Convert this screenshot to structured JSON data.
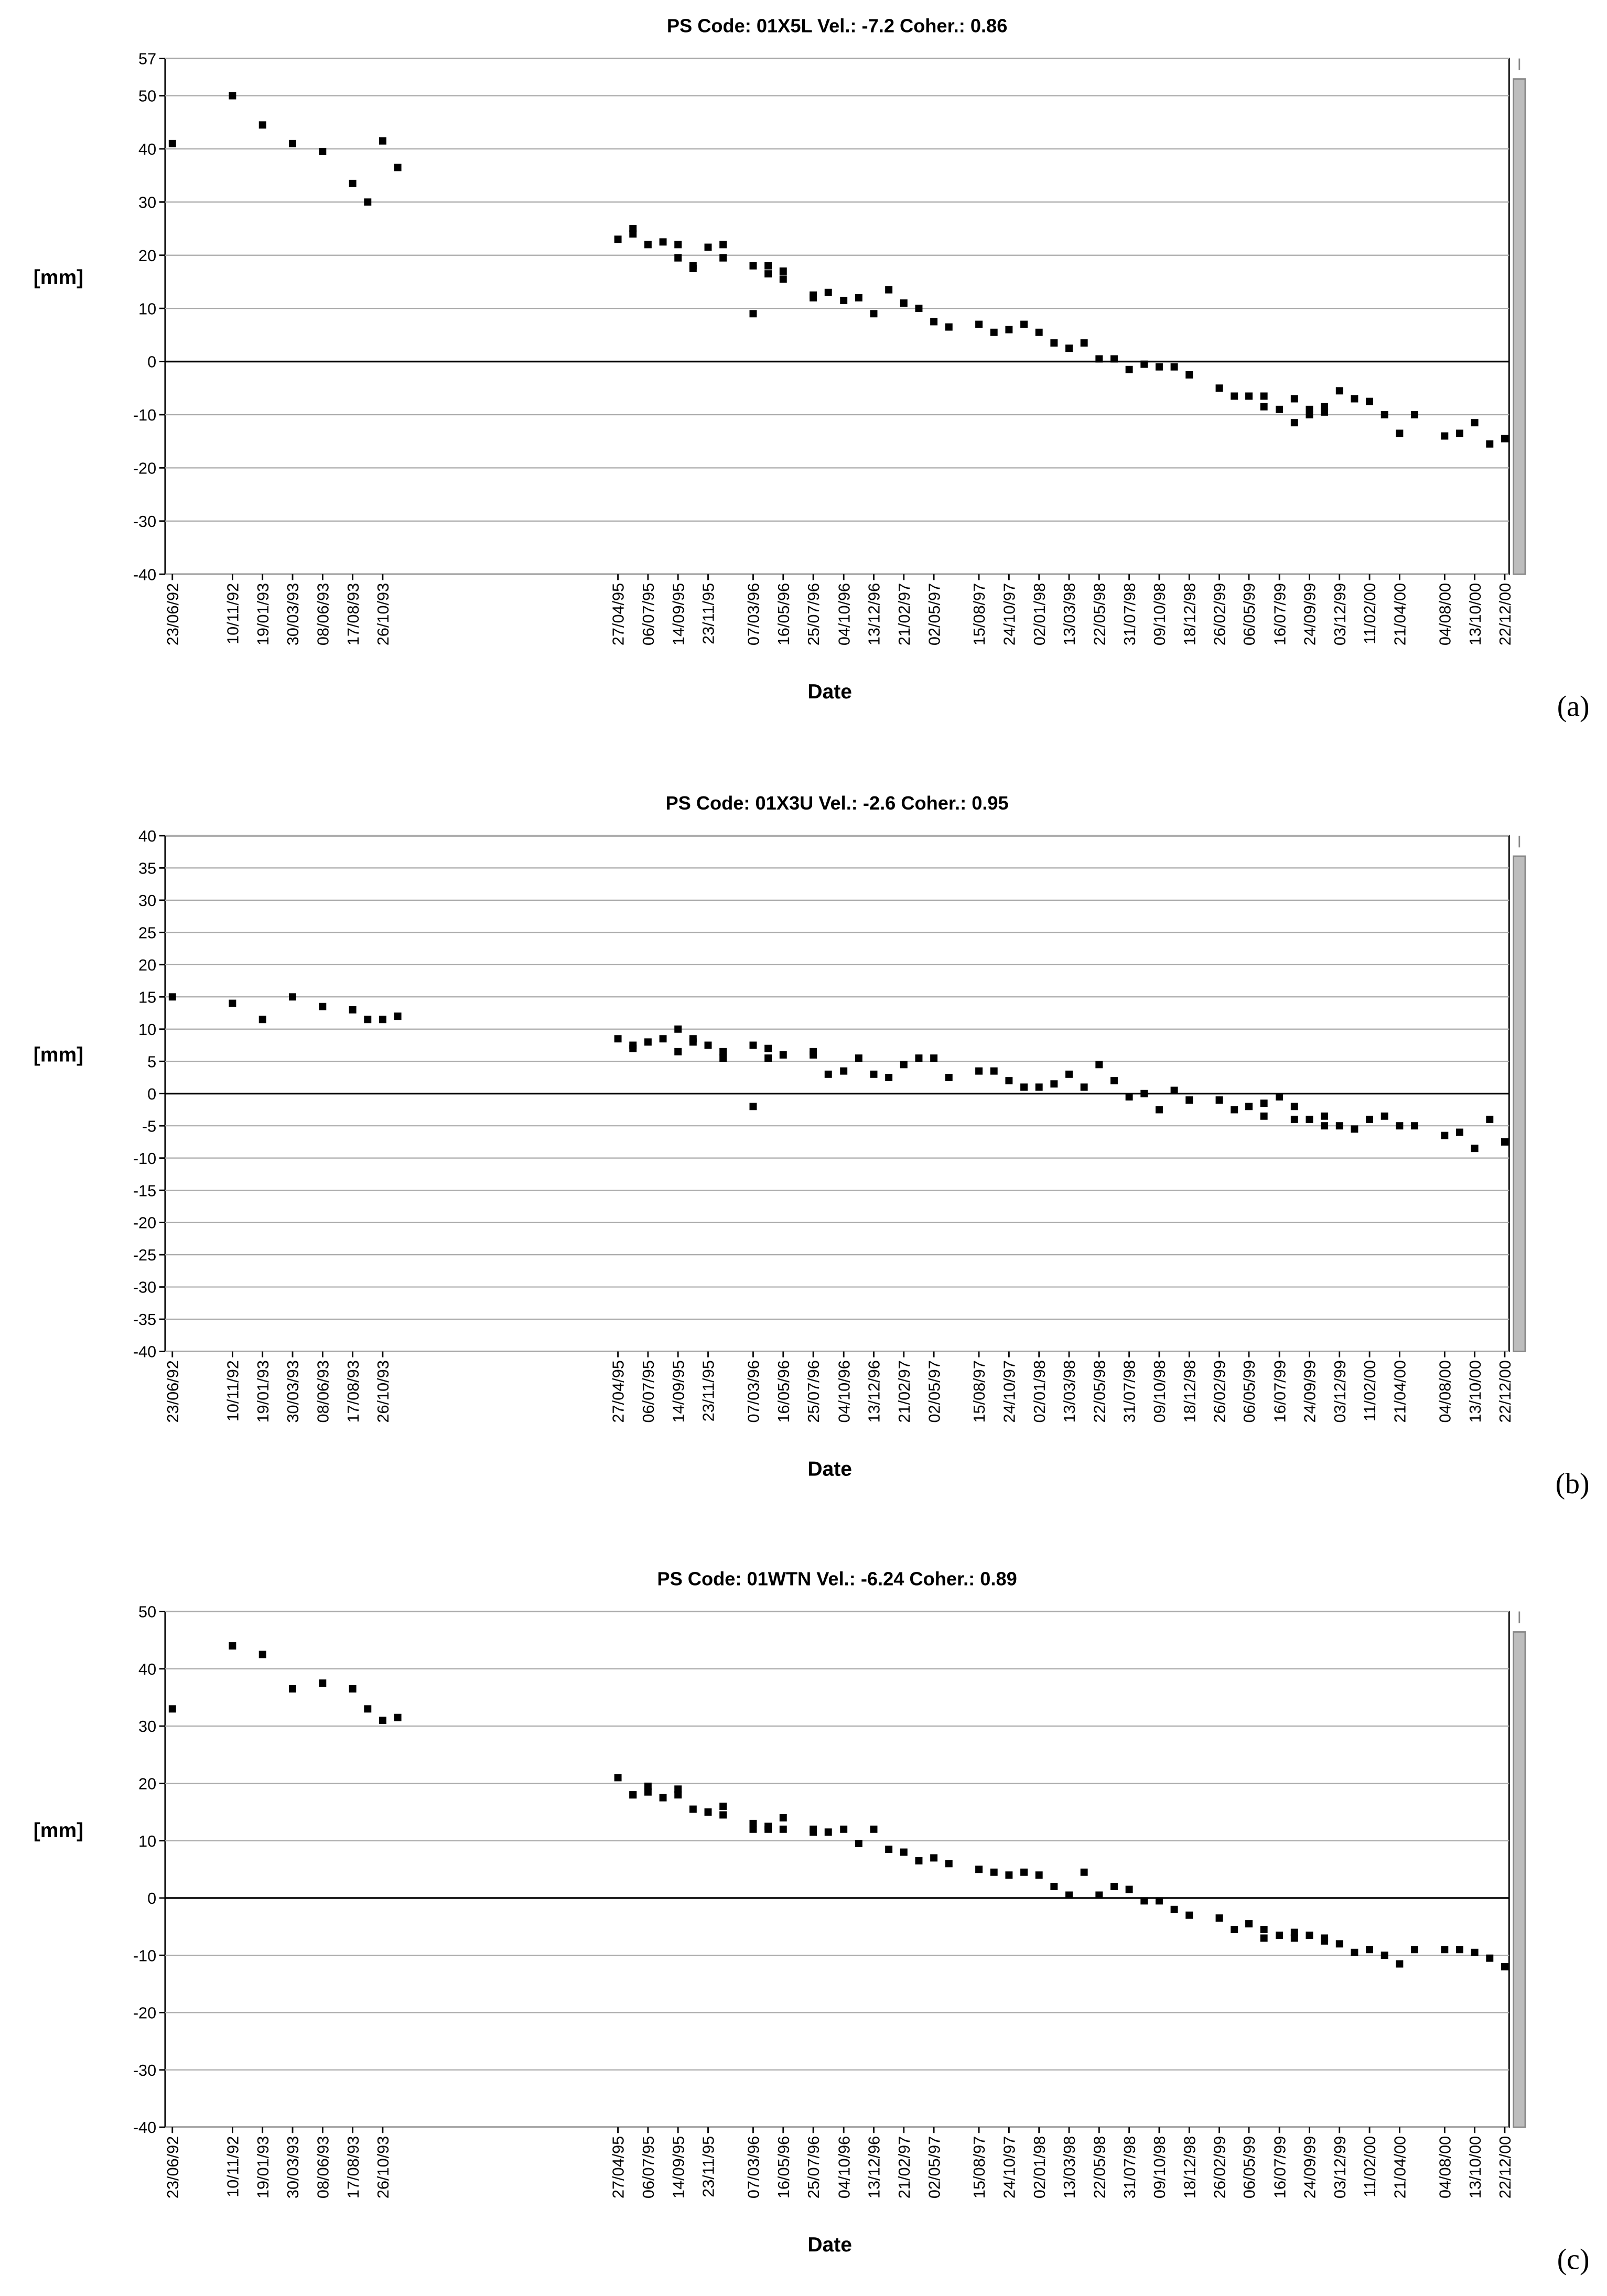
{
  "chart_data": [
    {
      "type": "scatter",
      "title": "PS Code: 01X5L   Vel.:  -7.2   Coher.: 0.86",
      "y_label": "[mm]",
      "x_label": "Date",
      "panel_label": "(a)",
      "grid": true,
      "ylim": [
        -40,
        57
      ],
      "yticks": [
        -40,
        -30,
        -20,
        -10,
        0,
        10,
        20,
        30,
        40,
        50,
        57
      ],
      "xlim": [
        "23/06/92",
        "22/12/00"
      ],
      "xticks": [
        "23/06/92",
        "10/11/92",
        "19/01/93",
        "30/03/93",
        "08/06/93",
        "17/08/93",
        "26/10/93",
        "27/04/95",
        "06/07/95",
        "14/09/95",
        "23/11/95",
        "07/03/96",
        "16/05/96",
        "25/07/96",
        "04/10/96",
        "13/12/96",
        "21/02/97",
        "02/05/97",
        "15/08/97",
        "24/10/97",
        "02/01/98",
        "13/03/98",
        "22/05/98",
        "31/07/98",
        "09/10/98",
        "18/12/98",
        "26/02/99",
        "06/05/99",
        "16/07/99",
        "24/09/99",
        "03/12/99",
        "11/02/00",
        "21/04/00",
        "04/08/00",
        "13/10/00",
        "22/12/00"
      ],
      "series": [
        {
          "color": "#000000",
          "x": [
            "23/06/92",
            "10/11/92",
            "19/01/93",
            "30/03/93",
            "08/06/93",
            "17/08/93",
            "21/09/93",
            "26/10/93",
            "30/11/93",
            "27/04/95",
            "01/06/95",
            "01/06/95",
            "06/07/95",
            "10/08/95",
            "14/09/95",
            "14/09/95",
            "19/10/95",
            "19/10/95",
            "23/11/95",
            "28/12/95",
            "28/12/95",
            "07/03/96",
            "07/03/96",
            "11/04/96",
            "11/04/96",
            "16/05/96",
            "16/05/96",
            "25/07/96",
            "25/07/96",
            "29/08/96",
            "04/10/96",
            "08/11/96",
            "13/12/96",
            "17/01/97",
            "21/02/97",
            "28/03/97",
            "02/05/97",
            "06/06/97",
            "15/08/97",
            "19/09/97",
            "24/10/97",
            "28/11/97",
            "02/01/98",
            "06/02/98",
            "13/03/98",
            "17/04/98",
            "22/05/98",
            "26/06/98",
            "31/07/98",
            "04/09/98",
            "09/10/98",
            "13/11/98",
            "18/12/98",
            "26/02/99",
            "02/04/99",
            "06/05/99",
            "10/06/99",
            "10/06/99",
            "16/07/99",
            "20/08/99",
            "20/08/99",
            "24/09/99",
            "24/09/99",
            "29/10/99",
            "29/10/99",
            "03/12/99",
            "07/01/00",
            "11/02/00",
            "17/03/00",
            "21/04/00",
            "26/05/00",
            "04/08/00",
            "08/09/00",
            "13/10/00",
            "17/11/00",
            "22/12/00"
          ],
          "values": [
            41,
            50,
            44.5,
            41,
            39.5,
            33.5,
            30,
            41.5,
            36.5,
            23,
            25,
            24,
            22,
            22.5,
            22,
            19.5,
            18,
            17.5,
            21.5,
            22,
            19.5,
            18,
            9,
            18,
            16.5,
            17,
            15.5,
            12.5,
            12,
            13,
            11.5,
            12,
            9,
            13.5,
            11,
            10,
            7.5,
            6.5,
            7,
            5.5,
            6,
            7,
            5.5,
            3.5,
            2.5,
            3.5,
            0.5,
            0.5,
            -1.5,
            -0.5,
            -1,
            -1,
            -2.5,
            -5,
            -6.5,
            -6.5,
            -6.5,
            -8.5,
            -9,
            -7,
            -11.5,
            -9,
            -10,
            -8.5,
            -9.5,
            -5.5,
            -7,
            -7.5,
            -10,
            -13.5,
            -10,
            -14,
            -13.5,
            -11.5,
            -15.5,
            -14.5
          ]
        }
      ]
    },
    {
      "type": "scatter",
      "title": "PS Code: 01X3U   Vel.:  -2.6   Coher.: 0.95",
      "y_label": "[mm]",
      "x_label": "Date",
      "panel_label": "(b)",
      "grid": true,
      "ylim": [
        -40,
        40
      ],
      "yticks": [
        -40,
        -35,
        -30,
        -25,
        -20,
        -15,
        -10,
        -5,
        0,
        5,
        10,
        15,
        20,
        25,
        30,
        35,
        40
      ],
      "xlim": [
        "23/06/92",
        "22/12/00"
      ],
      "xticks": [
        "23/06/92",
        "10/11/92",
        "19/01/93",
        "30/03/93",
        "08/06/93",
        "17/08/93",
        "26/10/93",
        "27/04/95",
        "06/07/95",
        "14/09/95",
        "23/11/95",
        "07/03/96",
        "16/05/96",
        "25/07/96",
        "04/10/96",
        "13/12/96",
        "21/02/97",
        "02/05/97",
        "15/08/97",
        "24/10/97",
        "02/01/98",
        "13/03/98",
        "22/05/98",
        "31/07/98",
        "09/10/98",
        "18/12/98",
        "26/02/99",
        "06/05/99",
        "16/07/99",
        "24/09/99",
        "03/12/99",
        "11/02/00",
        "21/04/00",
        "04/08/00",
        "13/10/00",
        "22/12/00"
      ],
      "series": [
        {
          "color": "#000000",
          "x": [
            "23/06/92",
            "10/11/92",
            "19/01/93",
            "30/03/93",
            "08/06/93",
            "17/08/93",
            "21/09/93",
            "26/10/93",
            "30/11/93",
            "27/04/95",
            "01/06/95",
            "01/06/95",
            "06/07/95",
            "10/08/95",
            "14/09/95",
            "14/09/95",
            "19/10/95",
            "19/10/95",
            "23/11/95",
            "28/12/95",
            "28/12/95",
            "07/03/96",
            "07/03/96",
            "11/04/96",
            "11/04/96",
            "16/05/96",
            "25/07/96",
            "25/07/96",
            "29/08/96",
            "04/10/96",
            "08/11/96",
            "13/12/96",
            "17/01/97",
            "21/02/97",
            "28/03/97",
            "02/05/97",
            "06/06/97",
            "15/08/97",
            "19/09/97",
            "24/10/97",
            "28/11/97",
            "02/01/98",
            "06/02/98",
            "13/03/98",
            "17/04/98",
            "22/05/98",
            "26/06/98",
            "31/07/98",
            "04/09/98",
            "09/10/98",
            "13/11/98",
            "18/12/98",
            "26/02/99",
            "02/04/99",
            "06/05/99",
            "10/06/99",
            "10/06/99",
            "16/07/99",
            "20/08/99",
            "20/08/99",
            "24/09/99",
            "29/10/99",
            "29/10/99",
            "03/12/99",
            "07/01/00",
            "11/02/00",
            "17/03/00",
            "21/04/00",
            "26/05/00",
            "04/08/00",
            "08/09/00",
            "13/10/00",
            "17/11/00",
            "22/12/00"
          ],
          "values": [
            15,
            14,
            11.5,
            15,
            13.5,
            13,
            11.5,
            11.5,
            12,
            8.5,
            7.5,
            7,
            8,
            8.5,
            10,
            6.5,
            8.5,
            8,
            7.5,
            6.5,
            5.5,
            7.5,
            -2,
            7,
            5.5,
            6,
            6.5,
            6,
            3,
            3.5,
            5.5,
            3,
            2.5,
            4.5,
            5.5,
            5.5,
            2.5,
            3.5,
            3.5,
            2,
            1,
            1,
            1.5,
            3,
            1,
            4.5,
            2,
            -0.5,
            0,
            -2.5,
            0.5,
            -1,
            -1,
            -2.5,
            -2,
            -1.5,
            -3.5,
            -0.5,
            -2,
            -4,
            -4,
            -3.5,
            -5,
            -5,
            -5.5,
            -4,
            -3.5,
            -5,
            -5,
            -6.5,
            -6,
            -8.5,
            -4,
            -7.5
          ]
        }
      ]
    },
    {
      "type": "scatter",
      "title": "PS Code: 01WTN   Vel.:  -6.24   Coher.: 0.89",
      "y_label": "[mm]",
      "x_label": "Date",
      "panel_label": "(c)",
      "grid": true,
      "ylim": [
        -40,
        50
      ],
      "yticks": [
        -40,
        -30,
        -20,
        -10,
        0,
        10,
        20,
        30,
        40,
        50
      ],
      "xlim": [
        "23/06/92",
        "22/12/00"
      ],
      "xticks": [
        "23/06/92",
        "10/11/92",
        "19/01/93",
        "30/03/93",
        "08/06/93",
        "17/08/93",
        "26/10/93",
        "27/04/95",
        "06/07/95",
        "14/09/95",
        "23/11/95",
        "07/03/96",
        "16/05/96",
        "25/07/96",
        "04/10/96",
        "13/12/96",
        "21/02/97",
        "02/05/97",
        "15/08/97",
        "24/10/97",
        "02/01/98",
        "13/03/98",
        "22/05/98",
        "31/07/98",
        "09/10/98",
        "18/12/98",
        "26/02/99",
        "06/05/99",
        "16/07/99",
        "24/09/99",
        "03/12/99",
        "11/02/00",
        "21/04/00",
        "04/08/00",
        "13/10/00",
        "22/12/00"
      ],
      "series": [
        {
          "color": "#000000",
          "x": [
            "23/06/92",
            "10/11/92",
            "19/01/93",
            "30/03/93",
            "08/06/93",
            "17/08/93",
            "21/09/93",
            "26/10/93",
            "30/11/93",
            "27/04/95",
            "01/06/95",
            "01/06/95",
            "06/07/95",
            "06/07/95",
            "10/08/95",
            "14/09/95",
            "14/09/95",
            "19/10/95",
            "23/11/95",
            "28/12/95",
            "28/12/95",
            "07/03/96",
            "07/03/96",
            "11/04/96",
            "11/04/96",
            "16/05/96",
            "16/05/96",
            "25/07/96",
            "25/07/96",
            "29/08/96",
            "04/10/96",
            "08/11/96",
            "13/12/96",
            "17/01/97",
            "21/02/97",
            "28/03/97",
            "02/05/97",
            "06/06/97",
            "15/08/97",
            "19/09/97",
            "24/10/97",
            "28/11/97",
            "02/01/98",
            "06/02/98",
            "13/03/98",
            "17/04/98",
            "22/05/98",
            "26/06/98",
            "31/07/98",
            "04/09/98",
            "09/10/98",
            "13/11/98",
            "18/12/98",
            "26/02/99",
            "02/04/99",
            "06/05/99",
            "10/06/99",
            "10/06/99",
            "16/07/99",
            "20/08/99",
            "20/08/99",
            "24/09/99",
            "29/10/99",
            "29/10/99",
            "03/12/99",
            "07/01/00",
            "11/02/00",
            "17/03/00",
            "21/04/00",
            "26/05/00",
            "04/08/00",
            "08/09/00",
            "13/10/00",
            "17/11/00",
            "22/12/00"
          ],
          "values": [
            33,
            44,
            42.5,
            36.5,
            37.5,
            36.5,
            33,
            31,
            31.5,
            21,
            18,
            18,
            19.5,
            18.5,
            17.5,
            19,
            18,
            15.5,
            15,
            16,
            14.5,
            13,
            12,
            12.5,
            12,
            14,
            12,
            12,
            11.5,
            11.5,
            12,
            9.5,
            12,
            8.5,
            8,
            6.5,
            7,
            6,
            5,
            4.5,
            4,
            4.5,
            4,
            2,
            0.5,
            4.5,
            0.5,
            2,
            1.5,
            -0.5,
            -0.5,
            -2,
            -3,
            -3.5,
            -5.5,
            -4.5,
            -5.5,
            -7,
            -6.5,
            -6,
            -7,
            -6.5,
            -7,
            -7.5,
            -8,
            -9.5,
            -9,
            -10,
            -11.5,
            -9,
            -9,
            -9,
            -9.5,
            -10.5,
            -12
          ]
        }
      ]
    }
  ]
}
